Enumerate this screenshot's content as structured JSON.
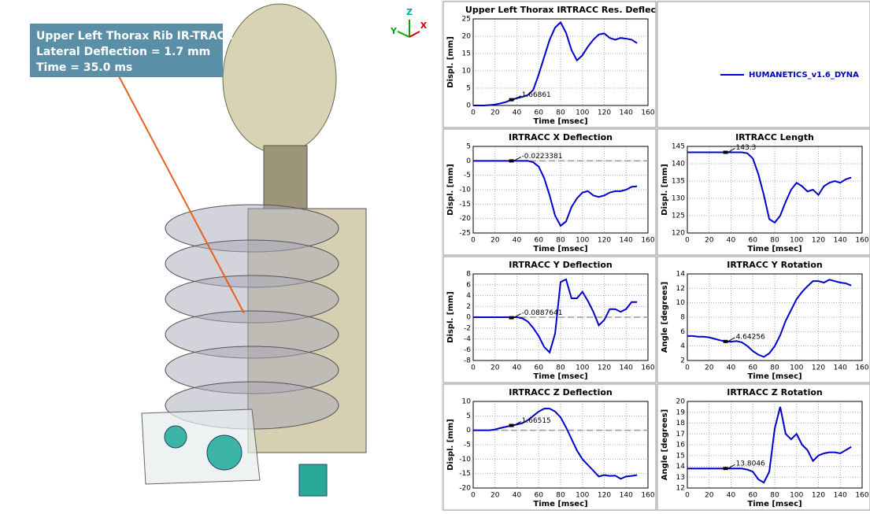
{
  "viewport": {
    "label": [
      "Upper Left Thorax Rib IR-TRACC",
      "Lateral Deflection = 1.7 mm",
      "Time = 35.0 ms"
    ],
    "axes": [
      "Z",
      "Y",
      "X"
    ]
  },
  "chart_data": [
    {
      "type": "line",
      "title": "Upper Left Thorax IRTRACC Res. Deflec",
      "xlabel": "Time [msec]",
      "ylabel": "Displ. [mm]",
      "xlim": [
        0,
        160
      ],
      "xticks": [
        0,
        20,
        40,
        60,
        80,
        100,
        120,
        140,
        160
      ],
      "ylim": [
        0,
        25
      ],
      "yticks": [
        0,
        5,
        10,
        15,
        20,
        25
      ],
      "grid": true,
      "x": [
        0,
        5,
        10,
        15,
        20,
        25,
        30,
        35,
        40,
        45,
        50,
        55,
        60,
        65,
        70,
        75,
        80,
        85,
        90,
        95,
        100,
        105,
        110,
        115,
        120,
        125,
        130,
        135,
        140,
        145,
        150
      ],
      "series": [
        {
          "name": "HUMANETICS_v1.6_DYNA",
          "color": "#0000cc",
          "values": [
            0,
            0,
            0,
            0.1,
            0.3,
            0.6,
            1.0,
            1.67,
            2.1,
            2.5,
            3,
            4.5,
            9,
            14,
            19,
            22.5,
            24,
            21,
            16,
            13,
            14.5,
            17,
            19,
            20.5,
            20.8,
            19.5,
            19,
            19.5,
            19.3,
            19,
            18
          ]
        }
      ],
      "marker": {
        "x": 35,
        "y": 1.66861
      }
    },
    {
      "type": "line",
      "title": "IRTRACC X Deflection",
      "xlabel": "Time [msec]",
      "ylabel": "Displ. [mm]",
      "xlim": [
        0,
        160
      ],
      "xticks": [
        0,
        20,
        40,
        60,
        80,
        100,
        120,
        140,
        160
      ],
      "ylim": [
        -25,
        5
      ],
      "yticks": [
        -25,
        -20,
        -15,
        -10,
        -5,
        0,
        5
      ],
      "grid": true,
      "ref_line": 0,
      "x": [
        0,
        5,
        10,
        15,
        20,
        25,
        30,
        35,
        40,
        45,
        50,
        55,
        60,
        65,
        70,
        75,
        80,
        85,
        90,
        95,
        100,
        105,
        110,
        115,
        120,
        125,
        130,
        135,
        140,
        145,
        150
      ],
      "series": [
        {
          "color": "#0000cc",
          "values": [
            0,
            0,
            0,
            0,
            0,
            0,
            0,
            0,
            0,
            0,
            0,
            -0.5,
            -2,
            -6,
            -12,
            -19,
            -22.5,
            -21,
            -16,
            -13,
            -11,
            -10.5,
            -12,
            -12.5,
            -12,
            -11,
            -10.5,
            -10.5,
            -10,
            -9,
            -8.8
          ]
        }
      ],
      "marker": {
        "x": 35,
        "y": -0.0223381
      }
    },
    {
      "type": "line",
      "title": "IRTRACC Length",
      "xlabel": "Time [msec]",
      "ylabel": "Displ. [mm]",
      "xlim": [
        0,
        160
      ],
      "xticks": [
        0,
        20,
        40,
        60,
        80,
        100,
        120,
        140,
        160
      ],
      "ylim": [
        120,
        145
      ],
      "yticks": [
        120,
        125,
        130,
        135,
        140,
        145
      ],
      "grid": true,
      "x": [
        0,
        5,
        10,
        15,
        20,
        25,
        30,
        35,
        40,
        45,
        50,
        55,
        60,
        65,
        70,
        75,
        80,
        85,
        90,
        95,
        100,
        105,
        110,
        115,
        120,
        125,
        130,
        135,
        140,
        145,
        150
      ],
      "series": [
        {
          "color": "#0000cc",
          "values": [
            143.3,
            143.3,
            143.3,
            143.3,
            143.3,
            143.3,
            143.3,
            143.3,
            143.3,
            143.3,
            143.3,
            143,
            141.5,
            137,
            131,
            124,
            123,
            125,
            129,
            132.5,
            134.5,
            133.5,
            132,
            132.5,
            131,
            133.5,
            134.5,
            135,
            134.5,
            135.5,
            136
          ]
        }
      ],
      "marker": {
        "x": 35,
        "y": 143.3
      }
    },
    {
      "type": "line",
      "title": "IRTRACC Y Deflection",
      "xlabel": "Time [msec]",
      "ylabel": "Displ. [mm]",
      "xlim": [
        0,
        160
      ],
      "xticks": [
        0,
        20,
        40,
        60,
        80,
        100,
        120,
        140,
        160
      ],
      "ylim": [
        -8,
        8
      ],
      "yticks": [
        -8,
        -6,
        -4,
        -2,
        0,
        2,
        4,
        6,
        8
      ],
      "grid": true,
      "ref_line": 0,
      "x": [
        0,
        5,
        10,
        15,
        20,
        25,
        30,
        35,
        40,
        45,
        50,
        55,
        60,
        65,
        70,
        75,
        80,
        85,
        90,
        95,
        100,
        105,
        110,
        115,
        120,
        125,
        130,
        135,
        140,
        145,
        150
      ],
      "series": [
        {
          "color": "#0000cc",
          "values": [
            0,
            0,
            0,
            0,
            0,
            0,
            0,
            0,
            0,
            -0.2,
            -0.8,
            -2,
            -3.5,
            -5.5,
            -6.5,
            -3,
            6.5,
            7,
            3.5,
            3.5,
            4.7,
            3,
            1,
            -1.5,
            -0.5,
            1.5,
            1.5,
            1,
            1.5,
            2.8,
            2.8
          ]
        }
      ],
      "marker": {
        "x": 35,
        "y": -0.0887641
      }
    },
    {
      "type": "line",
      "title": "IRTRACC Y Rotation",
      "xlabel": "Time [msec]",
      "ylabel": "Angle [degrees]",
      "xlim": [
        0,
        160
      ],
      "xticks": [
        0,
        20,
        40,
        60,
        80,
        100,
        120,
        140,
        160
      ],
      "ylim": [
        2,
        14
      ],
      "yticks": [
        2,
        4,
        6,
        8,
        10,
        12,
        14
      ],
      "grid": true,
      "x": [
        0,
        5,
        10,
        15,
        20,
        25,
        30,
        35,
        40,
        45,
        50,
        55,
        60,
        65,
        70,
        75,
        80,
        85,
        90,
        95,
        100,
        105,
        110,
        115,
        120,
        125,
        130,
        135,
        140,
        145,
        150
      ],
      "series": [
        {
          "color": "#0000cc",
          "values": [
            5.4,
            5.4,
            5.3,
            5.3,
            5.2,
            5,
            4.8,
            4.64,
            4.6,
            4.7,
            4.5,
            4,
            3.3,
            2.8,
            2.5,
            3,
            4,
            5.5,
            7.5,
            9,
            10.5,
            11.5,
            12.3,
            13,
            13,
            12.8,
            13.2,
            13,
            12.8,
            12.7,
            12.4
          ]
        }
      ],
      "marker": {
        "x": 35,
        "y": 4.64256
      }
    },
    {
      "type": "line",
      "title": "IRTRACC Z Deflection",
      "xlabel": "Time [msec]",
      "ylabel": "Displ. [mm]",
      "xlim": [
        0,
        160
      ],
      "xticks": [
        0,
        20,
        40,
        60,
        80,
        100,
        120,
        140,
        160
      ],
      "ylim": [
        -20,
        10
      ],
      "yticks": [
        -20,
        -15,
        -10,
        -5,
        0,
        5,
        10
      ],
      "grid": true,
      "ref_line": 0,
      "x": [
        0,
        5,
        10,
        15,
        20,
        25,
        30,
        35,
        40,
        45,
        50,
        55,
        60,
        65,
        70,
        75,
        80,
        85,
        90,
        95,
        100,
        105,
        110,
        115,
        120,
        125,
        130,
        135,
        140,
        145,
        150
      ],
      "series": [
        {
          "color": "#0000cc",
          "values": [
            0,
            0,
            0,
            0,
            0.3,
            0.8,
            1.2,
            1.67,
            2,
            2.5,
            3.5,
            5,
            6.5,
            7.5,
            7.5,
            6.5,
            4.5,
            1,
            -3,
            -7,
            -10,
            -12,
            -14,
            -16,
            -15.5,
            -15.8,
            -15.7,
            -16.8,
            -16,
            -15.8,
            -15.5
          ]
        }
      ],
      "marker": {
        "x": 35,
        "y": 1.66515
      }
    },
    {
      "type": "line",
      "title": "IRTRACC Z Rotation",
      "xlabel": "Time [msec]",
      "ylabel": "Angle [degrees]",
      "xlim": [
        0,
        160
      ],
      "xticks": [
        0,
        20,
        40,
        60,
        80,
        100,
        120,
        140,
        160
      ],
      "ylim": [
        12,
        20
      ],
      "yticks": [
        12,
        13,
        14,
        15,
        16,
        17,
        18,
        19,
        20
      ],
      "grid": true,
      "x": [
        0,
        5,
        10,
        15,
        20,
        25,
        30,
        35,
        40,
        45,
        50,
        55,
        60,
        65,
        70,
        75,
        80,
        85,
        90,
        95,
        100,
        105,
        110,
        115,
        120,
        125,
        130,
        135,
        140,
        145,
        150
      ],
      "series": [
        {
          "color": "#0000cc",
          "values": [
            13.8,
            13.8,
            13.8,
            13.8,
            13.8,
            13.8,
            13.8,
            13.8,
            13.8,
            13.8,
            13.8,
            13.7,
            13.5,
            12.8,
            12.5,
            13.5,
            17.5,
            19.5,
            17,
            16.5,
            17,
            16,
            15.5,
            14.5,
            15,
            15.2,
            15.3,
            15.3,
            15.2,
            15.5,
            15.8
          ]
        }
      ],
      "marker": {
        "x": 35,
        "y": 13.8046
      }
    }
  ]
}
